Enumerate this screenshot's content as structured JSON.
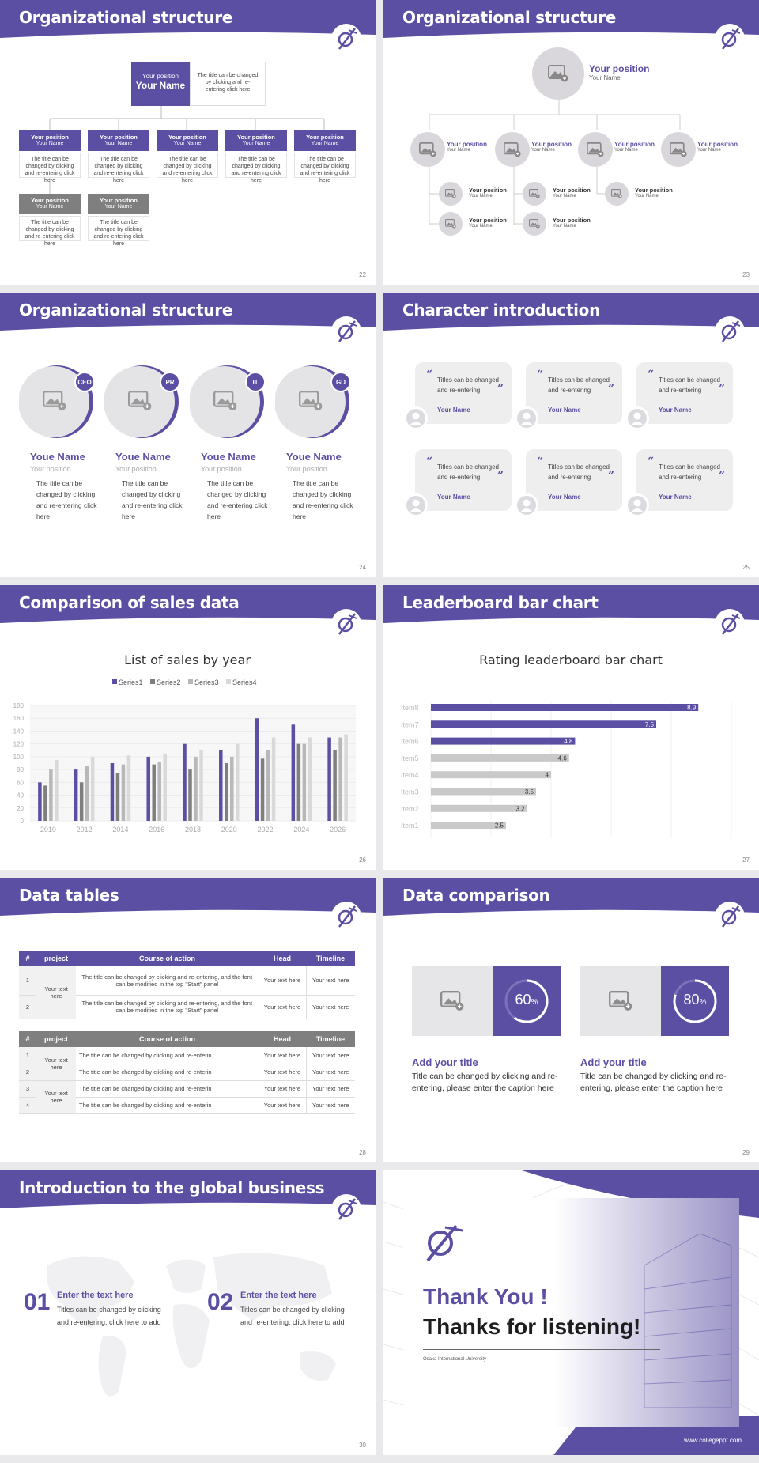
{
  "colors": {
    "accent": "#5b4fa4",
    "gray": "#7f7f7f",
    "light_gray": "#c9c9c9"
  },
  "slides": {
    "s22": {
      "title": "Organizational structure",
      "page": "22",
      "top": {
        "position": "Your position",
        "name": "Your Name",
        "desc": "The title can be changed by clicking and re-entering click here"
      },
      "row1": [
        {
          "position": "Your position",
          "name": "Your Name",
          "desc": "The title can be changed by clicking and re-entering click here"
        },
        {
          "position": "Your position",
          "name": "Your Name",
          "desc": "The title can be changed by clicking and re-entering click here"
        },
        {
          "position": "Your position",
          "name": "Your Name",
          "desc": "The title can be changed by clicking and re-entering click here"
        },
        {
          "position": "Your position",
          "name": "Your Name",
          "desc": "The title can be changed by clicking and re-entering click here"
        },
        {
          "position": "Your position",
          "name": "Your Name",
          "desc": "The title can be changed by clicking and re-entering click here"
        }
      ],
      "row2": [
        {
          "position": "Your position",
          "name": "Your Name",
          "desc": "The title can be changed by clicking and re-entering click here"
        },
        {
          "position": "Your position",
          "name": "Your Name",
          "desc": "The title can be changed by clicking and re-entering click here"
        }
      ]
    },
    "s23": {
      "title": "Organizational structure",
      "page": "23",
      "top": {
        "position": "Your position",
        "name": "Your Name"
      },
      "level2": [
        {
          "position": "Your position",
          "name": "Your Name"
        },
        {
          "position": "Your position",
          "name": "Your Name"
        },
        {
          "position": "Your position",
          "name": "Your Name"
        },
        {
          "position": "Your position",
          "name": "Your Name"
        }
      ],
      "level3": [
        {
          "position": "Your position",
          "name": "Your Name"
        },
        {
          "position": "Your position",
          "name": "Your Name"
        },
        {
          "position": "Your position",
          "name": "Your Name"
        },
        {
          "position": "Your position",
          "name": "Your Name"
        },
        {
          "position": "Your position",
          "name": "Your Name"
        }
      ]
    },
    "s24": {
      "title": "Organizational structure",
      "page": "24",
      "people": [
        {
          "badge": "CEO",
          "name": "Youe Name",
          "position": "Your position",
          "desc": "The title can be changed by clicking and re-entering click here"
        },
        {
          "badge": "PR",
          "name": "Youe Name",
          "position": "Your position",
          "desc": "The title can be changed by clicking and re-entering click here"
        },
        {
          "badge": "IT",
          "name": "Youe Name",
          "position": "Your position",
          "desc": "The title can be changed by clicking and re-entering click here"
        },
        {
          "badge": "GD",
          "name": "Youe Name",
          "position": "Your position",
          "desc": "The title can be changed by clicking and re-entering click here"
        }
      ]
    },
    "s25": {
      "title": "Character introduction",
      "page": "25",
      "quote_open": "“",
      "quote_close": "”",
      "cards": [
        {
          "text": "Titles can be changed and re-entering",
          "name": "Your Name"
        },
        {
          "text": "Titles can be changed and re-entering",
          "name": "Your Name"
        },
        {
          "text": "Titles can be changed and re-entering",
          "name": "Your Name"
        },
        {
          "text": "Titles can be changed and re-entering",
          "name": "Your Name"
        },
        {
          "text": "Titles can be changed and re-entering",
          "name": "Your Name"
        },
        {
          "text": "Titles can be changed and re-entering",
          "name": "Your Name"
        }
      ]
    },
    "s26": {
      "title": "Comparison of sales data",
      "page": "26"
    },
    "s27": {
      "title": "Leaderboard bar chart",
      "page": "27"
    },
    "s28": {
      "title": "Data tables",
      "page": "28",
      "t1_headers": [
        "#",
        "project",
        "Course of action",
        "Head",
        "Timeline"
      ],
      "t1_rows": [
        {
          "num": "1",
          "action": "The title can be changed by clicking and re-entering, and the font can be modified in the top \"Start\" panel",
          "head": "Your text here",
          "timeline": "Your text here"
        },
        {
          "num": "2",
          "action": "The title can be changed by clicking and re-entering, and the font can be modified in the top \"Start\" panel",
          "head": "Your text here",
          "timeline": "Your text here"
        }
      ],
      "t1_project": "Your text here",
      "t2_headers": [
        "#",
        "project",
        "Course of action",
        "Head",
        "Timeline"
      ],
      "t2_rows": [
        {
          "num": "1",
          "action": "The title can be changed by clicking and re-enterin",
          "head": "Your text here",
          "timeline": "Your text here"
        },
        {
          "num": "2",
          "action": "The title can be changed by clicking and re-enterin",
          "head": "Your text here",
          "timeline": "Your text here"
        },
        {
          "num": "3",
          "action": "The title can be changed by clicking and re-enterin",
          "head": "Your text here",
          "timeline": "Your text here"
        },
        {
          "num": "4",
          "action": "The title can be changed by clicking and re-enterin",
          "head": "Your text here",
          "timeline": "Your text here"
        }
      ],
      "t2_project_a": "Your text here",
      "t2_project_b": "Your text here"
    },
    "s29": {
      "title": "Data comparison",
      "page": "29",
      "items": [
        {
          "percent": 60,
          "pct_num": "60",
          "pct_sign": "%",
          "heading": "Add your title",
          "desc": "Title can be changed by clicking and re-entering, please enter the caption here"
        },
        {
          "percent": 80,
          "pct_num": "80",
          "pct_sign": "%",
          "heading": "Add your title",
          "desc": "Title can be changed by clicking and re-entering, please enter the caption here"
        }
      ]
    },
    "s30": {
      "title": "Introduction to the global business",
      "page": "30",
      "items": [
        {
          "num": "01",
          "heading": "Enter the text here",
          "desc": "Titles can be changed by clicking and re-entering, click here to add"
        },
        {
          "num": "02",
          "heading": "Enter the text here",
          "desc": "Titles can be changed by clicking and re-entering, click here to add"
        }
      ]
    },
    "s31": {
      "thank_you": "Thank You !",
      "thanks": "Thanks for listening!",
      "university": "Osaka International University",
      "website": "www.collegeppt.com"
    }
  },
  "chart_data": [
    {
      "type": "bar",
      "title": "List of sales by year",
      "categories": [
        "2010",
        "2012",
        "2014",
        "2016",
        "2018",
        "2020",
        "2022",
        "2024",
        "2026"
      ],
      "series": [
        {
          "name": "Series1",
          "values": [
            60,
            80,
            90,
            100,
            120,
            110,
            160,
            150,
            130
          ]
        },
        {
          "name": "Series2",
          "values": [
            55,
            60,
            75,
            88,
            80,
            90,
            97,
            120,
            110
          ]
        },
        {
          "name": "Series3",
          "values": [
            80,
            85,
            88,
            92,
            100,
            100,
            110,
            120,
            130
          ]
        },
        {
          "name": "Series4",
          "values": [
            95,
            100,
            102,
            105,
            110,
            120,
            130,
            130,
            135
          ]
        }
      ],
      "series_colors": [
        "#5b4fa4",
        "#7f7f7f",
        "#b8b8b8",
        "#d9d9d9"
      ],
      "y_ticks": [
        "0",
        "20",
        "40",
        "60",
        "80",
        "100",
        "120",
        "140",
        "160",
        "180"
      ],
      "ylim": [
        0,
        180
      ],
      "legend": "top",
      "grid": true
    },
    {
      "type": "bar",
      "orientation": "horizontal",
      "title": "Rating leaderboard bar chart",
      "categories": [
        "Item8",
        "Item7",
        "Item6",
        "Item5",
        "Item4",
        "Item3",
        "Item2",
        "Item1"
      ],
      "values": [
        8.9,
        7.5,
        4.8,
        4.6,
        4,
        3.5,
        3.2,
        2.5
      ],
      "value_labels": [
        "8.9",
        "7.5",
        "4.8",
        "4.6",
        "4",
        "3.5",
        "3.2",
        "2.5"
      ],
      "bar_colors": [
        "#5b4fa4",
        "#5b4fa4",
        "#5b4fa4",
        "#c9c9c9",
        "#c9c9c9",
        "#c9c9c9",
        "#c9c9c9",
        "#c9c9c9"
      ],
      "x_ticks": [
        "0",
        "2",
        "4",
        "6",
        "8",
        "10"
      ],
      "xlim": [
        0,
        10
      ],
      "grid": true
    }
  ]
}
